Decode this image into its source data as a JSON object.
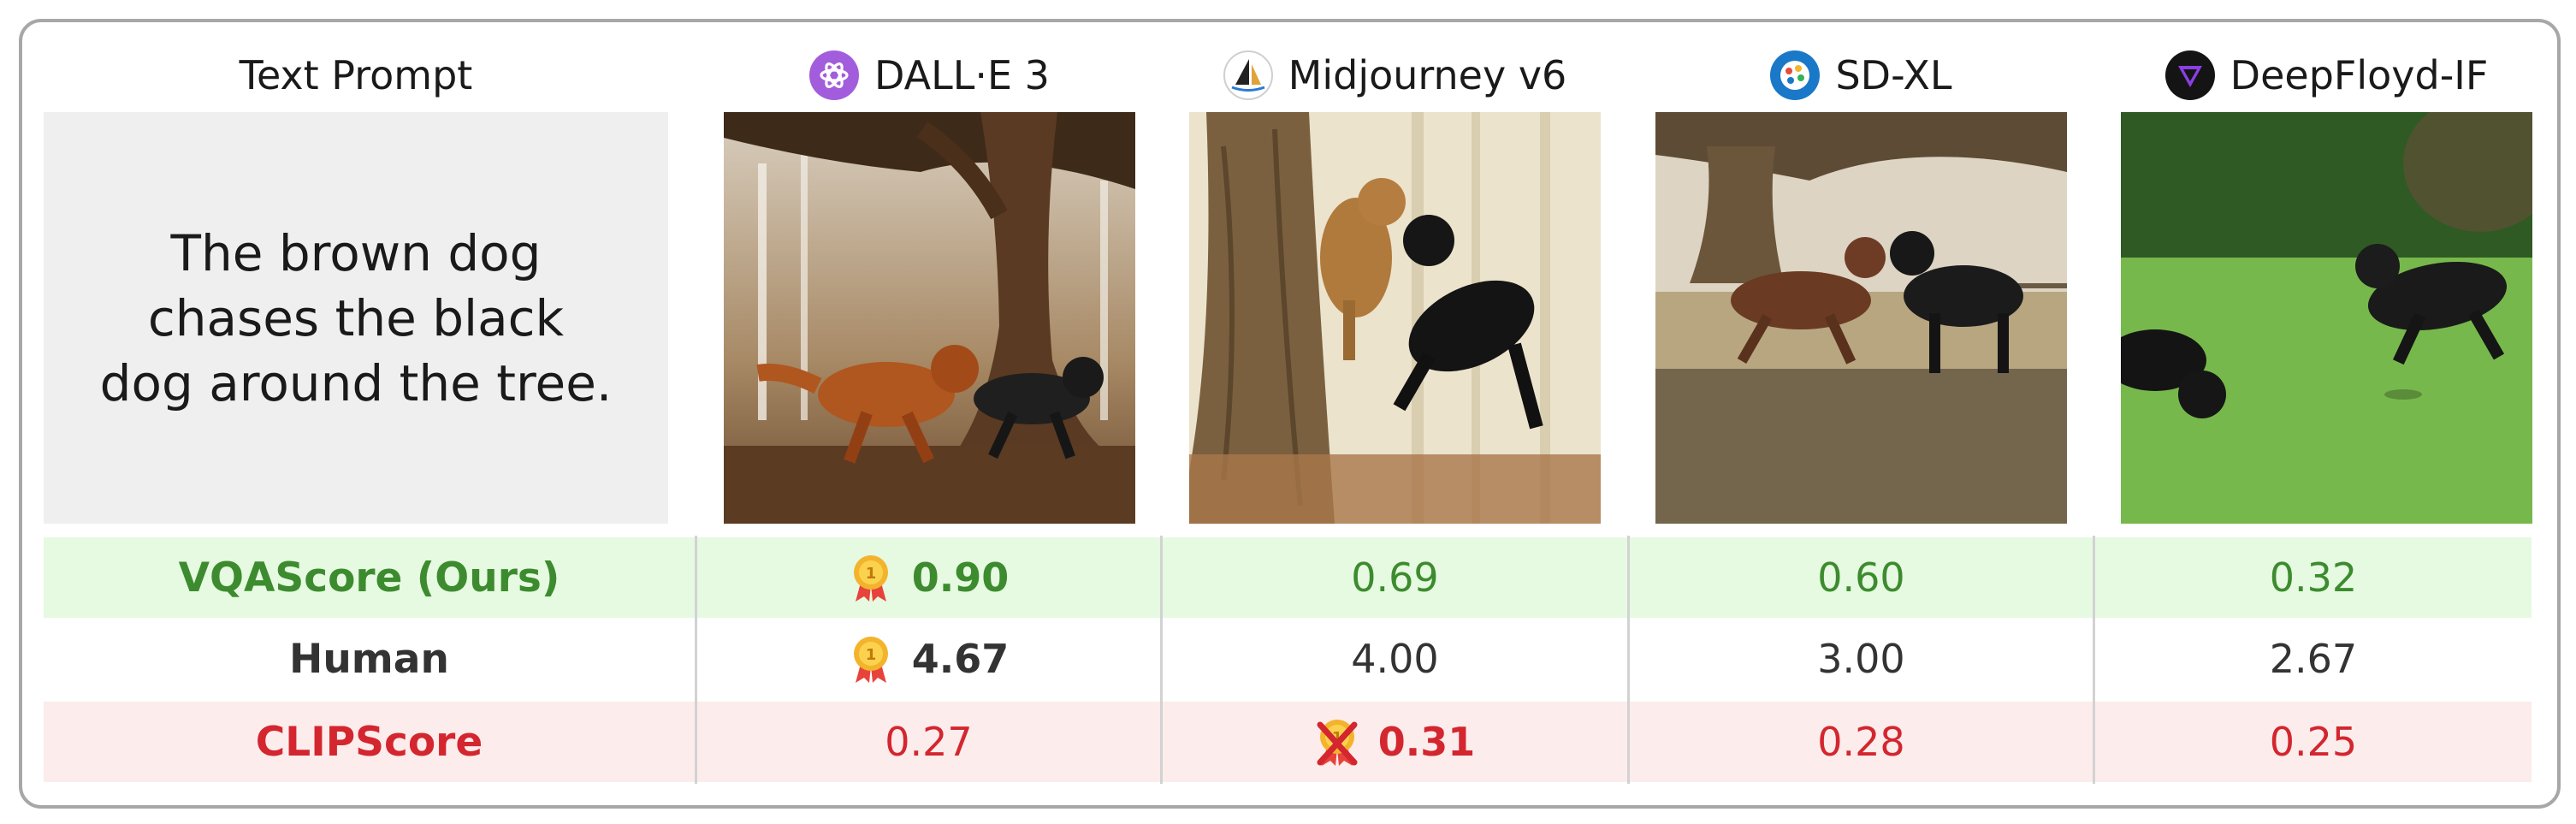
{
  "header": {
    "prompt_col": "Text Prompt",
    "models": [
      {
        "name": "DALL·E 3",
        "logo": "openai-logo"
      },
      {
        "name": "Midjourney v6",
        "logo": "midjourney-logo"
      },
      {
        "name": "SD-XL",
        "logo": "stability-logo"
      },
      {
        "name": "DeepFloyd-IF",
        "logo": "deepfloyd-logo"
      }
    ]
  },
  "prompt": "The brown dog chases the black dog around the tree.",
  "rows": [
    {
      "metric": "VQAScore (Ours)",
      "color": "#3d8b2f",
      "bg": "#e6f9e1",
      "values": [
        "0.90",
        "0.69",
        "0.60",
        "0.32"
      ],
      "best_index": 0,
      "best_marker": "gold-medal-icon"
    },
    {
      "metric": "Human",
      "color": "#333333",
      "bg": "#ffffff",
      "values": [
        "4.67",
        "4.00",
        "3.00",
        "2.67"
      ],
      "best_index": 0,
      "best_marker": "gold-medal-icon"
    },
    {
      "metric": "CLIPScore",
      "color": "#d3262f",
      "bg": "#fcecec",
      "values": [
        "0.27",
        "0.31",
        "0.28",
        "0.25"
      ],
      "best_index": 1,
      "best_marker": "crossed-medal-icon"
    }
  ],
  "colors": {
    "border": "#a7a7a7",
    "prompt_bg": "#efefef",
    "separator": "#d2d2d2"
  }
}
